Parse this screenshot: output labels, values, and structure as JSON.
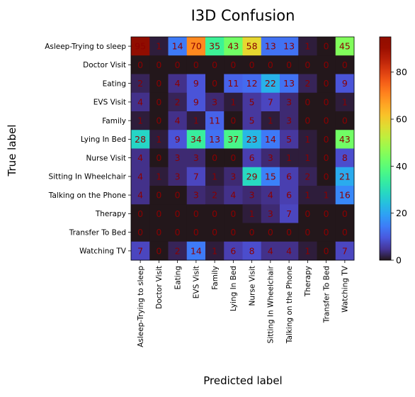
{
  "chart_data": {
    "type": "heatmap",
    "title": "I3D Confusion",
    "xlabel": "Predicted label",
    "ylabel": "True label",
    "labels": [
      "Asleep-Trying to sleep",
      "Doctor Visit",
      "Eating",
      "EVS Visit",
      "Family",
      "Lying In Bed",
      "Nurse Visit",
      "Sitting In Wheelchair",
      "Talking on the Phone",
      "Therapy",
      "Transfer To Bed",
      "Watching TV"
    ],
    "matrix": [
      [
        95,
        1,
        14,
        70,
        35,
        43,
        58,
        13,
        13,
        1,
        0,
        45
      ],
      [
        0,
        0,
        0,
        0,
        0,
        0,
        0,
        0,
        0,
        0,
        0,
        0
      ],
      [
        2,
        0,
        4,
        9,
        0,
        11,
        12,
        22,
        13,
        2,
        0,
        9
      ],
      [
        4,
        0,
        2,
        9,
        3,
        1,
        5,
        7,
        3,
        0,
        0,
        1
      ],
      [
        1,
        0,
        4,
        1,
        11,
        0,
        5,
        1,
        3,
        0,
        0,
        0
      ],
      [
        28,
        1,
        9,
        34,
        13,
        37,
        23,
        14,
        5,
        1,
        0,
        43
      ],
      [
        4,
        0,
        3,
        3,
        0,
        0,
        6,
        3,
        1,
        1,
        0,
        8
      ],
      [
        4,
        1,
        3,
        7,
        1,
        3,
        29,
        15,
        6,
        2,
        0,
        21
      ],
      [
        4,
        0,
        0,
        3,
        2,
        4,
        3,
        4,
        6,
        1,
        1,
        16
      ],
      [
        0,
        0,
        0,
        0,
        0,
        0,
        1,
        3,
        7,
        0,
        0,
        0
      ],
      [
        0,
        0,
        0,
        0,
        0,
        0,
        0,
        0,
        0,
        0,
        0,
        0
      ],
      [
        7,
        0,
        2,
        14,
        1,
        6,
        8,
        4,
        4,
        1,
        0,
        7
      ]
    ],
    "colorbar": {
      "min": 0,
      "max": 95,
      "ticks": [
        0,
        20,
        40,
        60,
        80
      ]
    },
    "colormap": "turbo",
    "annotation_color": "#8b0000"
  }
}
